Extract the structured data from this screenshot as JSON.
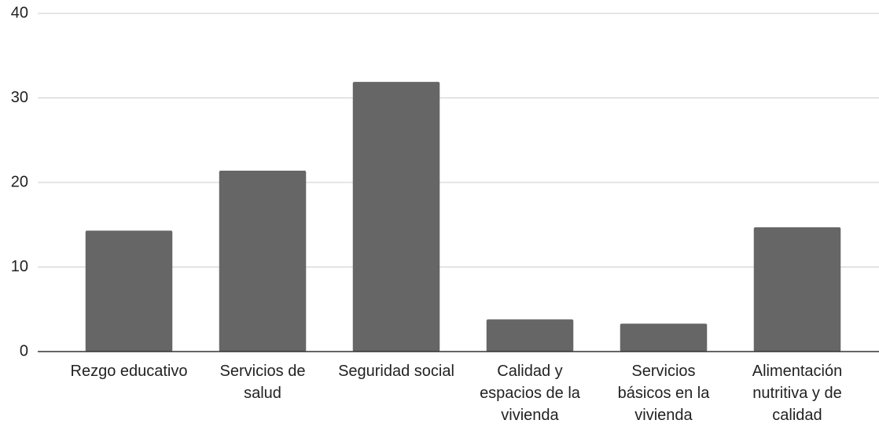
{
  "chart_data": {
    "type": "bar",
    "categories": [
      "Rezgo educativo",
      "Servicios de salud",
      "Seguridad social",
      "Calidad y espacios de la vivienda",
      "Servicios básicos en la vivienda",
      "Alimentación nutritiva y de calidad"
    ],
    "values": [
      14.3,
      21.4,
      31.9,
      3.8,
      3.3,
      14.7
    ],
    "color": "#666666",
    "ylim": [
      0,
      40
    ],
    "yticks": [
      0,
      10,
      20,
      30,
      40
    ],
    "grid": true
  }
}
